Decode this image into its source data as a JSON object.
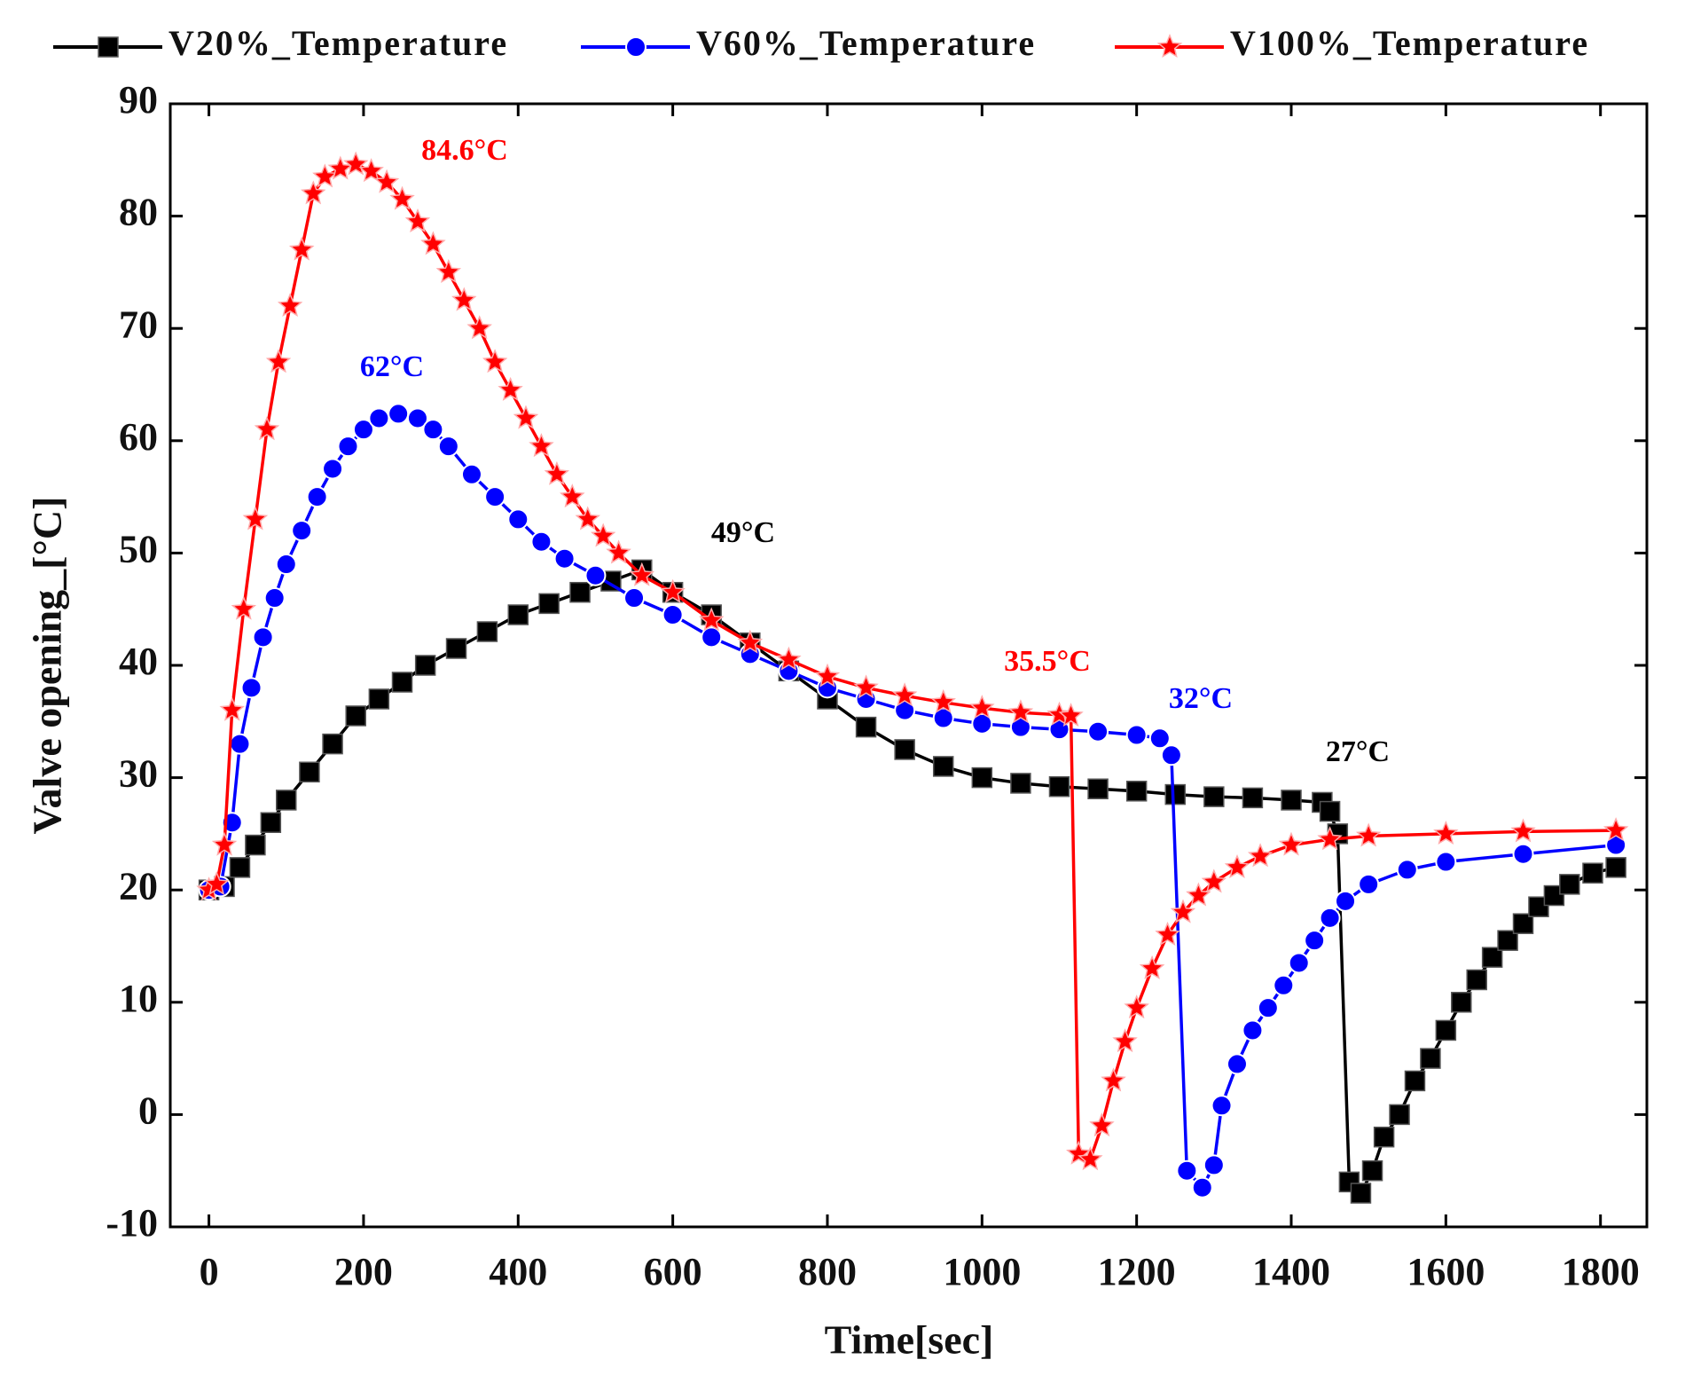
{
  "chart_data": {
    "type": "line",
    "xlabel": "Time[sec]",
    "ylabel": "Valve opening_[°C]",
    "xlim": [
      -50,
      1860
    ],
    "ylim": [
      -10,
      90
    ],
    "xticks": [
      0,
      200,
      400,
      600,
      800,
      1000,
      1200,
      1400,
      1600,
      1800
    ],
    "yticks": [
      -10,
      0,
      10,
      20,
      30,
      40,
      50,
      60,
      70,
      80,
      90
    ],
    "series": [
      {
        "name": "V20%_Temperature",
        "color": "#000000",
        "marker": "square",
        "x": [
          0,
          20,
          40,
          60,
          80,
          100,
          130,
          160,
          190,
          220,
          250,
          280,
          320,
          360,
          400,
          440,
          480,
          520,
          560,
          600,
          650,
          700,
          750,
          800,
          850,
          900,
          950,
          1000,
          1050,
          1100,
          1150,
          1200,
          1250,
          1300,
          1350,
          1400,
          1440,
          1450,
          1460,
          1475,
          1490,
          1505,
          1520,
          1540,
          1560,
          1580,
          1600,
          1620,
          1640,
          1660,
          1680,
          1700,
          1720,
          1740,
          1760,
          1790,
          1820
        ],
        "values": [
          20,
          20.3,
          22,
          24,
          26,
          28,
          30.5,
          33,
          35.5,
          37,
          38.5,
          40,
          41.5,
          43,
          44.5,
          45.5,
          46.5,
          47.5,
          48.5,
          46.5,
          44.5,
          42,
          39.5,
          37,
          34.5,
          32.5,
          31,
          30,
          29.5,
          29.2,
          29,
          28.8,
          28.5,
          28.3,
          28.2,
          28,
          27.8,
          27,
          25,
          -6,
          -7,
          -5,
          -2,
          0,
          3,
          5,
          7.5,
          10,
          12,
          14,
          15.5,
          17,
          18.5,
          19.5,
          20.5,
          21.5,
          22
        ]
      },
      {
        "name": "V60%_Temperature",
        "color": "#0000ff",
        "marker": "circle",
        "x": [
          0,
          15,
          30,
          40,
          55,
          70,
          85,
          100,
          120,
          140,
          160,
          180,
          200,
          220,
          245,
          270,
          290,
          310,
          340,
          370,
          400,
          430,
          460,
          500,
          550,
          600,
          650,
          700,
          750,
          800,
          850,
          900,
          950,
          1000,
          1050,
          1100,
          1150,
          1200,
          1230,
          1245,
          1265,
          1285,
          1300,
          1310,
          1330,
          1350,
          1370,
          1390,
          1410,
          1430,
          1450,
          1470,
          1500,
          1550,
          1600,
          1700,
          1820
        ],
        "values": [
          20,
          20.3,
          26,
          33,
          38,
          42.5,
          46,
          49,
          52,
          55,
          57.5,
          59.5,
          61,
          62,
          62.4,
          62,
          61,
          59.5,
          57,
          55,
          53,
          51,
          49.5,
          48,
          46,
          44.5,
          42.5,
          41,
          39.5,
          38,
          37,
          36,
          35.3,
          34.8,
          34.5,
          34.3,
          34.1,
          33.8,
          33.5,
          32,
          -5,
          -6.5,
          -4.5,
          0.8,
          4.5,
          7.5,
          9.5,
          11.5,
          13.5,
          15.5,
          17.5,
          19,
          20.5,
          21.8,
          22.5,
          23.2,
          24
        ]
      },
      {
        "name": "V100%_Temperature",
        "color": "#ff0000",
        "marker": "star",
        "x": [
          0,
          10,
          20,
          30,
          45,
          60,
          75,
          90,
          105,
          120,
          135,
          150,
          170,
          190,
          210,
          230,
          250,
          270,
          290,
          310,
          330,
          350,
          370,
          390,
          410,
          430,
          450,
          470,
          490,
          510,
          530,
          560,
          600,
          650,
          700,
          750,
          800,
          850,
          900,
          950,
          1000,
          1050,
          1100,
          1115,
          1125,
          1140,
          1155,
          1170,
          1185,
          1200,
          1220,
          1240,
          1260,
          1280,
          1300,
          1330,
          1360,
          1400,
          1450,
          1500,
          1600,
          1700,
          1820
        ],
        "values": [
          20,
          20.5,
          24,
          36,
          45,
          53,
          61,
          67,
          72,
          77,
          82,
          83.5,
          84.2,
          84.6,
          84,
          83,
          81.5,
          79.5,
          77.5,
          75,
          72.5,
          70,
          67,
          64.5,
          62,
          59.5,
          57,
          55,
          53,
          51.5,
          50,
          48,
          46.5,
          44,
          42,
          40.5,
          39,
          38,
          37.3,
          36.7,
          36.2,
          35.8,
          35.6,
          35.5,
          -3.5,
          -4,
          -1,
          3,
          6.5,
          9.5,
          13,
          16,
          18,
          19.5,
          20.7,
          22,
          23,
          24,
          24.5,
          24.8,
          25,
          25.2,
          25.3
        ]
      }
    ],
    "annotations": [
      {
        "text": "84.6°C",
        "color": "#ff0000"
      },
      {
        "text": "62°C",
        "color": "#0000ff"
      },
      {
        "text": "49°C",
        "color": "#000000"
      },
      {
        "text": "35.5°C",
        "color": "#ff0000"
      },
      {
        "text": "32°C",
        "color": "#0000ff"
      },
      {
        "text": "27°C",
        "color": "#000000"
      }
    ]
  }
}
